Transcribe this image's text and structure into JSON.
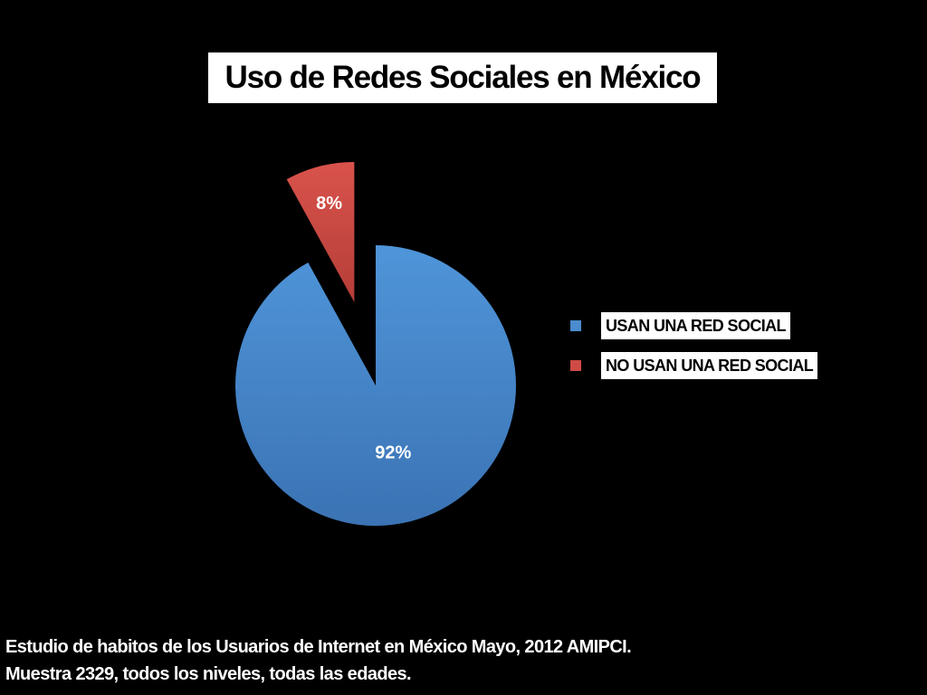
{
  "chart_data": {
    "type": "pie",
    "title": "Uso de Redes Sociales en México",
    "slices": [
      {
        "label": "USAN UNA RED SOCIAL",
        "value": 92,
        "data_label": "92%",
        "color": "#4a8ccf",
        "exploded": false
      },
      {
        "label": "NO USAN UNA RED SOCIAL",
        "value": 8,
        "data_label": "8%",
        "color": "#cf4b45",
        "exploded": true
      }
    ],
    "legend_position": "right",
    "background_color": "#000000"
  },
  "footnote": {
    "line1": "Estudio de habitos de los Usuarios de Internet en México Mayo, 2012 AMIPCI.",
    "line2": "Muestra 2329, todos los niveles, todas las edades."
  }
}
